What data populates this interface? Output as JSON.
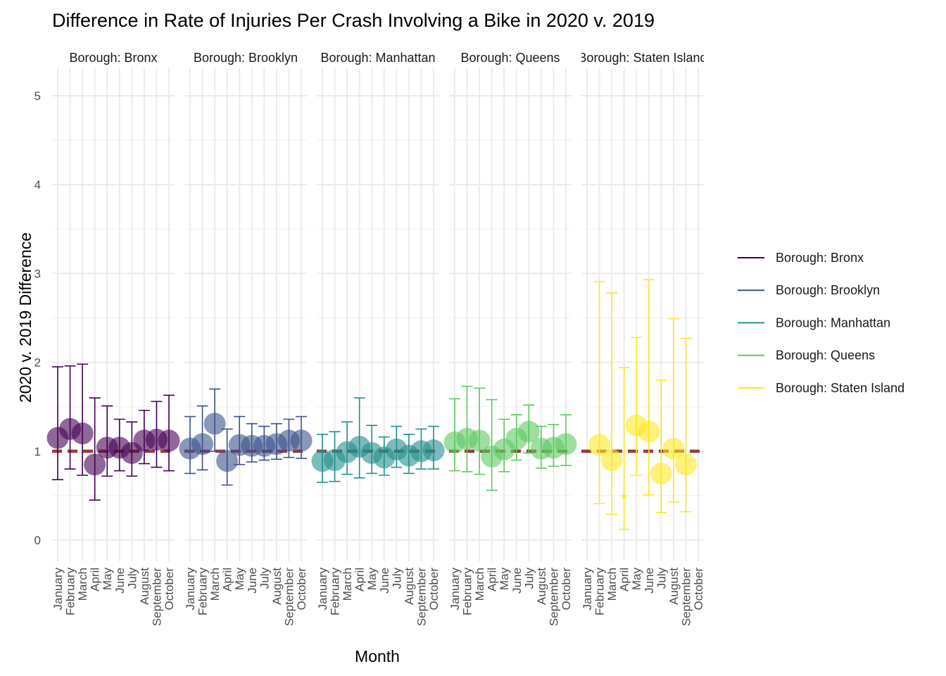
{
  "chart_data": {
    "type": "scatter",
    "title": "Difference in Rate of Injuries Per Crash Involving a Bike in 2020 v. 2019",
    "xlabel": "Month",
    "ylabel": "2020 v. 2019 Difference",
    "ylim": [
      -0.2,
      5.2
    ],
    "yticks": [
      0,
      1,
      2,
      3,
      4,
      5
    ],
    "reference_line": 1,
    "reference_color": "#8b1a1a",
    "grid": true,
    "legend_position": "right",
    "months": [
      "January",
      "February",
      "March",
      "April",
      "May",
      "June",
      "July",
      "August",
      "September",
      "October"
    ],
    "panels": [
      {
        "name": "Borough: Bronx",
        "color": "#440154",
        "points": [
          {
            "month": "January",
            "est": 1.15,
            "lo": 0.68,
            "hi": 1.95
          },
          {
            "month": "February",
            "est": 1.25,
            "lo": 0.8,
            "hi": 1.96
          },
          {
            "month": "March",
            "est": 1.2,
            "lo": 0.73,
            "hi": 1.98
          },
          {
            "month": "April",
            "est": 0.85,
            "lo": 0.45,
            "hi": 1.6
          },
          {
            "month": "May",
            "est": 1.04,
            "lo": 0.72,
            "hi": 1.51
          },
          {
            "month": "June",
            "est": 1.04,
            "lo": 0.78,
            "hi": 1.36
          },
          {
            "month": "July",
            "est": 0.98,
            "lo": 0.72,
            "hi": 1.33
          },
          {
            "month": "August",
            "est": 1.12,
            "lo": 0.86,
            "hi": 1.46
          },
          {
            "month": "September",
            "est": 1.13,
            "lo": 0.82,
            "hi": 1.56
          },
          {
            "month": "October",
            "est": 1.12,
            "lo": 0.78,
            "hi": 1.63
          }
        ]
      },
      {
        "name": "Borough: Brooklyn",
        "color": "#3b528b",
        "points": [
          {
            "month": "January",
            "est": 1.03,
            "lo": 0.75,
            "hi": 1.39
          },
          {
            "month": "February",
            "est": 1.08,
            "lo": 0.79,
            "hi": 1.51
          },
          {
            "month": "March",
            "est": 1.31,
            "lo": 1.0,
            "hi": 1.7
          },
          {
            "month": "April",
            "est": 0.89,
            "lo": 0.62,
            "hi": 1.25
          },
          {
            "month": "May",
            "est": 1.07,
            "lo": 0.85,
            "hi": 1.39
          },
          {
            "month": "June",
            "est": 1.06,
            "lo": 0.88,
            "hi": 1.31
          },
          {
            "month": "July",
            "est": 1.06,
            "lo": 0.9,
            "hi": 1.28
          },
          {
            "month": "August",
            "est": 1.08,
            "lo": 0.91,
            "hi": 1.31
          },
          {
            "month": "September",
            "est": 1.12,
            "lo": 0.93,
            "hi": 1.36
          },
          {
            "month": "October",
            "est": 1.12,
            "lo": 0.92,
            "hi": 1.39
          }
        ]
      },
      {
        "name": "Borough: Manhattan",
        "color": "#21908c",
        "points": [
          {
            "month": "January",
            "est": 0.89,
            "lo": 0.65,
            "hi": 1.19
          },
          {
            "month": "February",
            "est": 0.9,
            "lo": 0.66,
            "hi": 1.22
          },
          {
            "month": "March",
            "est": 0.99,
            "lo": 0.74,
            "hi": 1.33
          },
          {
            "month": "April",
            "est": 1.05,
            "lo": 0.7,
            "hi": 1.6
          },
          {
            "month": "May",
            "est": 0.98,
            "lo": 0.75,
            "hi": 1.29
          },
          {
            "month": "June",
            "est": 0.93,
            "lo": 0.73,
            "hi": 1.16
          },
          {
            "month": "July",
            "est": 1.02,
            "lo": 0.82,
            "hi": 1.28
          },
          {
            "month": "August",
            "est": 0.95,
            "lo": 0.75,
            "hi": 1.19
          },
          {
            "month": "September",
            "est": 1.0,
            "lo": 0.8,
            "hi": 1.25
          },
          {
            "month": "October",
            "est": 1.01,
            "lo": 0.8,
            "hi": 1.28
          }
        ]
      },
      {
        "name": "Borough: Queens",
        "color": "#5ec962",
        "points": [
          {
            "month": "January",
            "est": 1.1,
            "lo": 0.78,
            "hi": 1.59
          },
          {
            "month": "February",
            "est": 1.14,
            "lo": 0.77,
            "hi": 1.73
          },
          {
            "month": "March",
            "est": 1.12,
            "lo": 0.74,
            "hi": 1.71
          },
          {
            "month": "April",
            "est": 0.94,
            "lo": 0.56,
            "hi": 1.58
          },
          {
            "month": "May",
            "est": 1.02,
            "lo": 0.77,
            "hi": 1.36
          },
          {
            "month": "June",
            "est": 1.14,
            "lo": 0.9,
            "hi": 1.41
          },
          {
            "month": "July",
            "est": 1.22,
            "lo": 0.98,
            "hi": 1.52
          },
          {
            "month": "August",
            "est": 1.03,
            "lo": 0.81,
            "hi": 1.28
          },
          {
            "month": "September",
            "est": 1.04,
            "lo": 0.83,
            "hi": 1.3
          },
          {
            "month": "October",
            "est": 1.08,
            "lo": 0.84,
            "hi": 1.41
          }
        ]
      },
      {
        "name": "Borough: Staten Island",
        "color": "#fde725",
        "points": [
          {
            "month": "February",
            "est": 1.07,
            "lo": 0.41,
            "hi": 2.91
          },
          {
            "month": "March",
            "est": 0.9,
            "lo": 0.29,
            "hi": 2.78
          },
          {
            "month": "April",
            "est": 0.49,
            "lo": 0.12,
            "hi": 1.94
          },
          {
            "month": "May",
            "est": 1.29,
            "lo": 0.73,
            "hi": 2.28
          },
          {
            "month": "June",
            "est": 1.22,
            "lo": 0.51,
            "hi": 2.93
          },
          {
            "month": "July",
            "est": 0.75,
            "lo": 0.31,
            "hi": 1.8
          },
          {
            "month": "August",
            "est": 1.03,
            "lo": 0.43,
            "hi": 2.49
          },
          {
            "month": "September",
            "est": 0.85,
            "lo": 0.32,
            "hi": 2.27
          }
        ]
      }
    ]
  }
}
